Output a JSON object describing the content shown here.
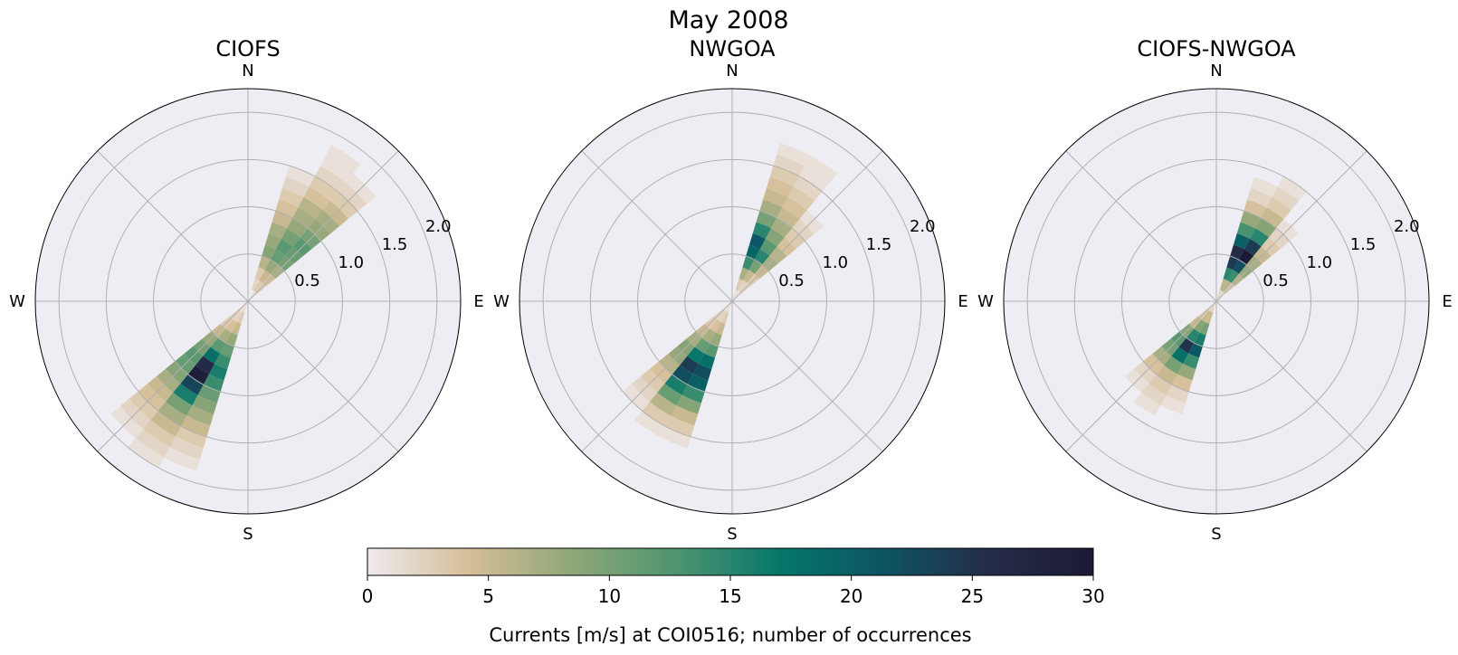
{
  "figure": {
    "title": "May 2008"
  },
  "compass": {
    "n": "N",
    "e": "E",
    "s": "S",
    "w": "W"
  },
  "colorbar": {
    "label": "Currents [m/s] at COI0516; number of occurrences",
    "ticks": [
      "0",
      "5",
      "10",
      "15",
      "20",
      "25",
      "30"
    ],
    "range": [
      0,
      30
    ],
    "colormap": [
      "#eeeaee",
      "#d5bd96",
      "#8da677",
      "#4c9470",
      "#057669",
      "#0d5363",
      "#252c48",
      "#1b1a34"
    ]
  },
  "chart_data": [
    {
      "type": "windrose",
      "title": "CIOFS",
      "radial_ticks": [
        "0.5",
        "1.0",
        "1.5",
        "2.0"
      ],
      "rlim": [
        0,
        2.25
      ],
      "bin_width_deg": 11.25,
      "speed_bin_width": 0.125,
      "directions_deg": [
        22.5,
        33.75,
        45,
        202.5,
        213.75,
        225
      ],
      "counts": [
        [
          0,
          2,
          3,
          6,
          9,
          8,
          7,
          5,
          4,
          3,
          2,
          1,
          0,
          0,
          0,
          0
        ],
        [
          1,
          3,
          5,
          8,
          11,
          12,
          10,
          8,
          7,
          6,
          4,
          3,
          2,
          1,
          1,
          0
        ],
        [
          1,
          3,
          4,
          7,
          10,
          11,
          12,
          10,
          8,
          7,
          5,
          3,
          2,
          1,
          0,
          0
        ],
        [
          1,
          3,
          5,
          8,
          11,
          14,
          16,
          14,
          11,
          9,
          7,
          5,
          3,
          2,
          1,
          0
        ],
        [
          1,
          2,
          4,
          7,
          12,
          18,
          26,
          29,
          23,
          16,
          10,
          7,
          5,
          3,
          2,
          1
        ],
        [
          1,
          2,
          3,
          5,
          8,
          10,
          12,
          11,
          9,
          7,
          5,
          4,
          3,
          2,
          1,
          0
        ]
      ]
    },
    {
      "type": "windrose",
      "title": "NWGOA",
      "radial_ticks": [
        "0.5",
        "1.0",
        "1.5",
        "2.0"
      ],
      "rlim": [
        0,
        2.25
      ],
      "bin_width_deg": 11.25,
      "speed_bin_width": 0.125,
      "directions_deg": [
        22.5,
        33.75,
        45,
        202.5,
        213.75,
        225
      ],
      "counts": [
        [
          1,
          3,
          7,
          14,
          19,
          21,
          15,
          10,
          7,
          5,
          4,
          3,
          2,
          1,
          0,
          0
        ],
        [
          1,
          2,
          5,
          10,
          15,
          12,
          9,
          7,
          5,
          4,
          3,
          2,
          1,
          1,
          0,
          0
        ],
        [
          1,
          2,
          3,
          5,
          7,
          6,
          4,
          3,
          2,
          1,
          0,
          0,
          0,
          0,
          0,
          0
        ],
        [
          1,
          3,
          5,
          8,
          12,
          18,
          22,
          20,
          14,
          9,
          5,
          3,
          1,
          0,
          0,
          0
        ],
        [
          1,
          2,
          4,
          7,
          11,
          17,
          24,
          22,
          16,
          11,
          6,
          3,
          1,
          0,
          0,
          0
        ],
        [
          1,
          2,
          3,
          5,
          7,
          9,
          8,
          6,
          4,
          3,
          2,
          1,
          0,
          0,
          0,
          0
        ]
      ]
    },
    {
      "type": "windrose",
      "title": "CIOFS-NWGOA",
      "radial_ticks": [
        "0.5",
        "1.0",
        "1.5",
        "2.0"
      ],
      "rlim": [
        0,
        2.25
      ],
      "bin_width_deg": 11.25,
      "speed_bin_width": 0.125,
      "directions_deg": [
        22.5,
        33.75,
        45,
        202.5,
        213.75,
        225
      ],
      "counts": [
        [
          2,
          6,
          15,
          24,
          26,
          20,
          13,
          8,
          4,
          2,
          1,
          0,
          0,
          0,
          0,
          0
        ],
        [
          2,
          6,
          14,
          22,
          30,
          24,
          15,
          9,
          5,
          3,
          2,
          1,
          0,
          0,
          0,
          0
        ],
        [
          1,
          3,
          6,
          8,
          7,
          5,
          3,
          2,
          1,
          0,
          0,
          0,
          0,
          0,
          0,
          0
        ],
        [
          2,
          5,
          10,
          16,
          21,
          14,
          8,
          4,
          2,
          1,
          0,
          0,
          0,
          0,
          0,
          0
        ],
        [
          2,
          5,
          9,
          15,
          25,
          18,
          10,
          5,
          3,
          2,
          1,
          0,
          0,
          0,
          0,
          0
        ],
        [
          1,
          3,
          5,
          9,
          12,
          10,
          7,
          4,
          2,
          1,
          0,
          0,
          0,
          0,
          0,
          0
        ]
      ]
    }
  ]
}
